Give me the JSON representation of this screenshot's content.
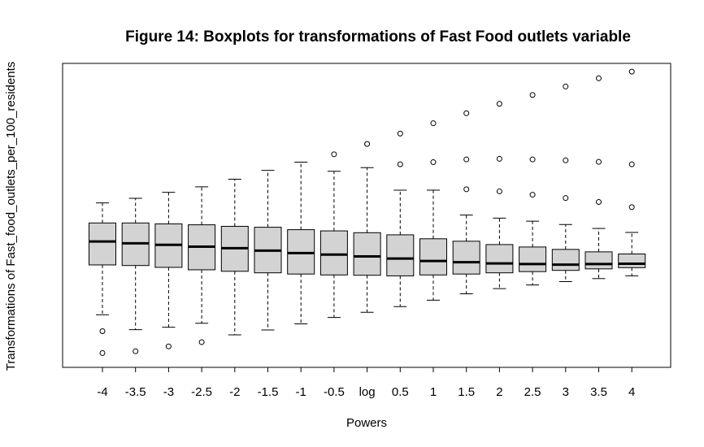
{
  "chart_data": {
    "type": "boxplot",
    "title": "Figure 14: Boxplots for transformations of Fast Food outlets variable",
    "xlabel": "Powers",
    "ylabel": "Transformations of Fast_food_outlets_per_100_residents",
    "y_tick_labels_shown": false,
    "ylim": [
      0,
      100
    ],
    "categories": [
      "-4",
      "-3.5",
      "-3",
      "-2.5",
      "-2",
      "-1.5",
      "-1",
      "-0.5",
      "log",
      "0.5",
      "1",
      "1.5",
      "2",
      "2.5",
      "3",
      "3.5",
      "4"
    ],
    "boxes": [
      {
        "whisker_low": 17.3,
        "q1": 33.7,
        "median": 41.4,
        "q3": 47.5,
        "whisker_high": 54.1,
        "outliers": [
          11.9,
          4.7
        ]
      },
      {
        "whisker_low": 12.4,
        "q1": 33.5,
        "median": 40.8,
        "q3": 47.5,
        "whisker_high": 55.6,
        "outliers": [
          5.3
        ]
      },
      {
        "whisker_low": 13.2,
        "q1": 32.9,
        "median": 40.3,
        "q3": 47.2,
        "whisker_high": 57.6,
        "outliers": [
          6.9
        ]
      },
      {
        "whisker_low": 14.5,
        "q1": 32.1,
        "median": 39.7,
        "q3": 46.9,
        "whisker_high": 59.4,
        "outliers": [
          8.3
        ]
      },
      {
        "whisker_low": 10.7,
        "q1": 31.6,
        "median": 39.2,
        "q3": 46.4,
        "whisker_high": 61.9,
        "outliers": []
      },
      {
        "whisker_low": 12.3,
        "q1": 31.1,
        "median": 38.4,
        "q3": 46.1,
        "whisker_high": 64.8,
        "outliers": []
      },
      {
        "whisker_low": 14.3,
        "q1": 30.7,
        "median": 37.6,
        "q3": 45.3,
        "whisker_high": 67.5,
        "outliers": []
      },
      {
        "whisker_low": 16.4,
        "q1": 30.4,
        "median": 37.1,
        "q3": 44.9,
        "whisker_high": 64.5,
        "outliers": [
          70.1
        ]
      },
      {
        "whisker_low": 18.1,
        "q1": 30.3,
        "median": 36.5,
        "q3": 44.3,
        "whisker_high": 65.7,
        "outliers": [
          73.5
        ]
      },
      {
        "whisker_low": 20.0,
        "q1": 30.1,
        "median": 35.8,
        "q3": 43.6,
        "whisker_high": 58.3,
        "outliers": [
          66.8,
          76.9
        ]
      },
      {
        "whisker_low": 22.1,
        "q1": 30.4,
        "median": 35.0,
        "q3": 42.3,
        "whisker_high": 58.3,
        "outliers": [
          67.5,
          80.3
        ]
      },
      {
        "whisker_low": 24.2,
        "q1": 30.7,
        "median": 34.6,
        "q3": 41.5,
        "whisker_high": 50.1,
        "outliers": [
          58.6,
          68.4,
          83.6
        ]
      },
      {
        "whisker_low": 25.9,
        "q1": 31.1,
        "median": 34.2,
        "q3": 40.4,
        "whisker_high": 49.1,
        "outliers": [
          57.9,
          68.6,
          86.7
        ]
      },
      {
        "whisker_low": 27.1,
        "q1": 31.5,
        "median": 34.0,
        "q3": 39.6,
        "whisker_high": 48.1,
        "outliers": [
          56.8,
          68.4,
          89.6
        ]
      },
      {
        "whisker_low": 28.2,
        "q1": 31.9,
        "median": 33.8,
        "q3": 38.8,
        "whisker_high": 47.0,
        "outliers": [
          55.7,
          68.1,
          92.4
        ]
      },
      {
        "whisker_low": 29.2,
        "q1": 32.4,
        "median": 34.0,
        "q3": 38.0,
        "whisker_high": 45.7,
        "outliers": [
          54.4,
          67.6,
          95.1
        ]
      },
      {
        "whisker_low": 30.1,
        "q1": 32.8,
        "median": 34.1,
        "q3": 37.3,
        "whisker_high": 44.4,
        "outliers": [
          52.7,
          66.8,
          97.3
        ]
      }
    ],
    "box_fill": "#d3d3d3",
    "grid": false,
    "legend": "none"
  }
}
